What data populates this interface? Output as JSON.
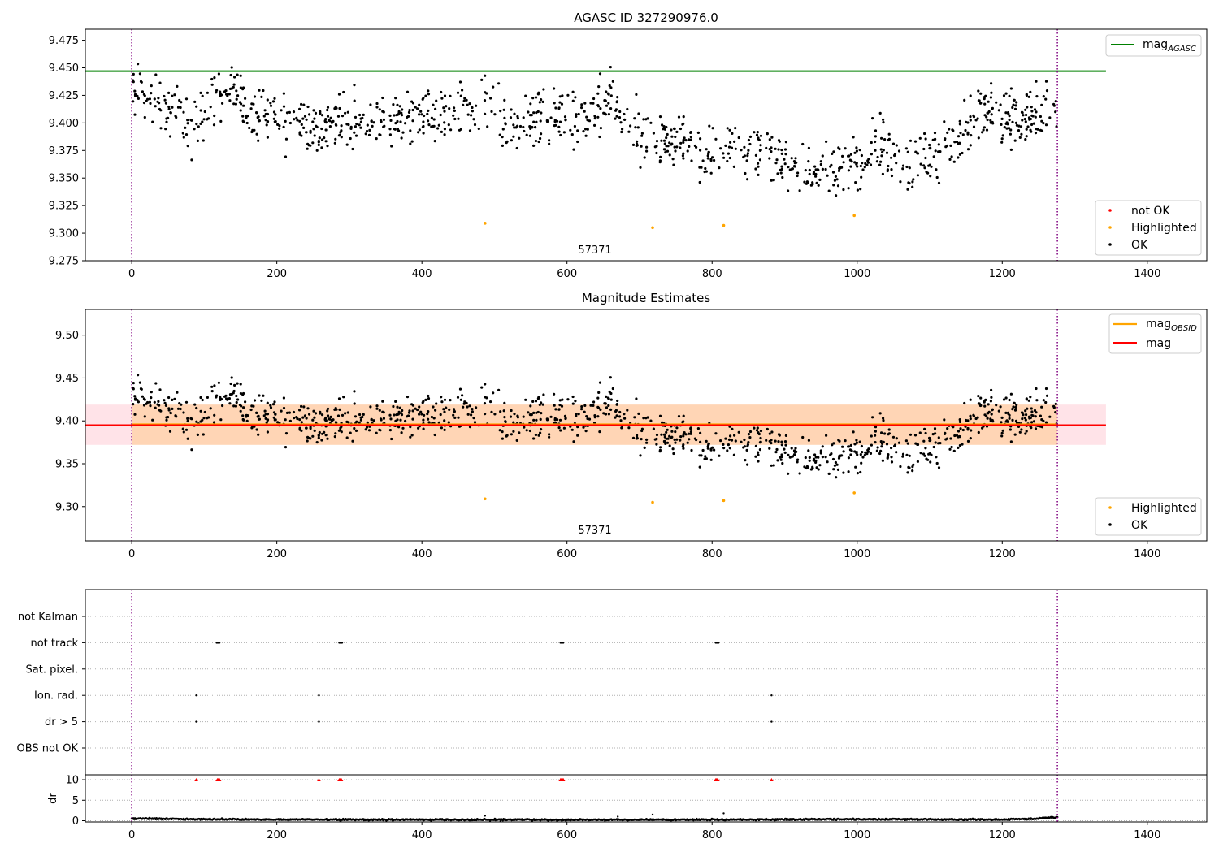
{
  "chart_data": [
    {
      "type": "scatter",
      "title": "AGASC ID 327290976.0",
      "annotation": "57371",
      "xlim": [
        -64,
        1482
      ],
      "ylim": [
        9.275,
        9.485
      ],
      "xticks": [
        "0",
        "200",
        "400",
        "600",
        "800",
        "1000",
        "1200",
        "1400"
      ],
      "yticks": [
        "9.275",
        "9.300",
        "9.325",
        "9.350",
        "9.375",
        "9.400",
        "9.425",
        "9.450",
        "9.475"
      ],
      "vlines": [
        0,
        1276
      ],
      "hlines": [
        {
          "name": "mag_AGASC",
          "value": 9.447,
          "x_start": -64,
          "x_end": 1343,
          "color": "#008000"
        }
      ],
      "line_legend": [
        {
          "label": "mag",
          "sub": "AGASC",
          "color": "#008000"
        }
      ],
      "point_legend": [
        {
          "label": "not OK",
          "color": "#ff0000"
        },
        {
          "label": "Highlighted",
          "color": "#ffa500"
        },
        {
          "label": "OK",
          "color": "#000000"
        }
      ],
      "highlighted_points": [
        [
          487,
          9.309
        ],
        [
          718,
          9.305
        ],
        [
          816,
          9.307
        ],
        [
          996,
          9.316
        ]
      ],
      "ok_trend": [
        [
          0,
          9.43
        ],
        [
          20,
          9.428
        ],
        [
          40,
          9.418
        ],
        [
          60,
          9.408
        ],
        [
          80,
          9.398
        ],
        [
          100,
          9.405
        ],
        [
          120,
          9.422
        ],
        [
          140,
          9.43
        ],
        [
          150,
          9.43
        ],
        [
          160,
          9.408
        ],
        [
          180,
          9.41
        ],
        [
          200,
          9.405
        ],
        [
          220,
          9.398
        ],
        [
          260,
          9.395
        ],
        [
          300,
          9.4
        ],
        [
          340,
          9.405
        ],
        [
          380,
          9.4
        ],
        [
          420,
          9.405
        ],
        [
          460,
          9.415
        ],
        [
          490,
          9.415
        ],
        [
          520,
          9.4
        ],
        [
          560,
          9.402
        ],
        [
          600,
          9.405
        ],
        [
          640,
          9.41
        ],
        [
          660,
          9.425
        ],
        [
          680,
          9.402
        ],
        [
          700,
          9.39
        ],
        [
          720,
          9.384
        ],
        [
          760,
          9.383
        ],
        [
          800,
          9.372
        ],
        [
          840,
          9.378
        ],
        [
          880,
          9.37
        ],
        [
          920,
          9.362
        ],
        [
          960,
          9.352
        ],
        [
          1000,
          9.362
        ],
        [
          1020,
          9.378
        ],
        [
          1040,
          9.38
        ],
        [
          1060,
          9.36
        ],
        [
          1080,
          9.365
        ],
        [
          1100,
          9.37
        ],
        [
          1120,
          9.378
        ],
        [
          1150,
          9.392
        ],
        [
          1180,
          9.415
        ],
        [
          1200,
          9.408
        ],
        [
          1240,
          9.405
        ],
        [
          1276,
          9.415
        ]
      ],
      "ok_spread": 0.012,
      "ok_count": 1150,
      "ok_color": "#000000"
    },
    {
      "type": "scatter",
      "title": "Magnitude Estimates",
      "annotation": "57371",
      "xlim": [
        -64,
        1482
      ],
      "ylim": [
        9.26,
        9.53
      ],
      "xticks": [
        "0",
        "200",
        "400",
        "600",
        "800",
        "1000",
        "1200",
        "1400"
      ],
      "yticks": [
        "9.30",
        "9.35",
        "9.40",
        "9.45",
        "9.50"
      ],
      "vlines": [
        0,
        1276
      ],
      "bands": [
        {
          "x_start": -64,
          "x_end": 1343,
          "y_low": 9.372,
          "y_high": 9.419,
          "color": "#ffc0cb",
          "opacity": 0.45
        },
        {
          "x_start": 0,
          "x_end": 1276,
          "y_low": 9.372,
          "y_high": 9.419,
          "color": "#ffa500",
          "opacity": 0.22
        }
      ],
      "hlines": [
        {
          "name": "mag_OBSID",
          "value": 9.396,
          "x_start": 0,
          "x_end": 1276,
          "color": "#ffa500"
        },
        {
          "name": "mag",
          "value": 9.395,
          "x_start": -64,
          "x_end": 1343,
          "color": "#ff0000"
        }
      ],
      "line_legend": [
        {
          "label": "mag",
          "sub": "OBSID",
          "color": "#ffa500"
        },
        {
          "label": "mag",
          "sub": "",
          "color": "#ff0000"
        }
      ],
      "point_legend": [
        {
          "label": "Highlighted",
          "color": "#ffa500"
        },
        {
          "label": "OK",
          "color": "#000000"
        }
      ],
      "highlighted_points": [
        [
          487,
          9.309
        ],
        [
          718,
          9.305
        ],
        [
          816,
          9.307
        ],
        [
          996,
          9.316
        ]
      ]
    },
    {
      "type": "scatter",
      "title": "",
      "xlim": [
        -64,
        1482
      ],
      "xticks": [
        "0",
        "200",
        "400",
        "600",
        "800",
        "1000",
        "1200",
        "1400"
      ],
      "vlines": [
        0,
        1276
      ],
      "categories": [
        "not Kalman",
        "not track",
        "Sat. pixel.",
        "Ion. rad.",
        "dr > 5",
        "OBS not OK"
      ],
      "flag_points": {
        "not track": [
          117,
          118,
          119,
          120,
          121,
          286,
          287,
          288,
          289,
          290,
          591,
          592,
          593,
          594,
          595,
          805,
          806,
          807,
          808,
          809
        ],
        "Ion. rad.": [
          89,
          258,
          882
        ],
        "dr > 5": [
          89,
          258,
          882
        ]
      },
      "flag_color": "#000000"
    },
    {
      "type": "scatter",
      "title": "",
      "ylabel": "dr",
      "xlim": [
        -64,
        1482
      ],
      "ylim": [
        -0.3,
        11.2
      ],
      "xticks": [
        "0",
        "200",
        "400",
        "600",
        "800",
        "1000",
        "1200",
        "1400"
      ],
      "yticks": [
        "0",
        "5",
        "10"
      ],
      "vlines": [
        0,
        1276
      ],
      "marker_points": [
        89,
        118,
        119,
        120,
        121,
        258,
        286,
        287,
        288,
        289,
        591,
        592,
        593,
        594,
        595,
        805,
        806,
        807,
        808,
        882
      ],
      "marker_value": 10,
      "marker_color": "#ff0000",
      "dr_trend": [
        [
          0,
          0.55
        ],
        [
          100,
          0.35
        ],
        [
          200,
          0.3
        ],
        [
          400,
          0.25
        ],
        [
          600,
          0.2
        ],
        [
          800,
          0.25
        ],
        [
          1000,
          0.35
        ],
        [
          1100,
          0.3
        ],
        [
          1200,
          0.3
        ],
        [
          1240,
          0.45
        ],
        [
          1276,
          0.9
        ]
      ],
      "dr_outliers": [
        [
          487,
          1.2
        ],
        [
          718,
          1.5
        ],
        [
          816,
          1.8
        ],
        [
          670,
          1.0
        ]
      ]
    }
  ]
}
